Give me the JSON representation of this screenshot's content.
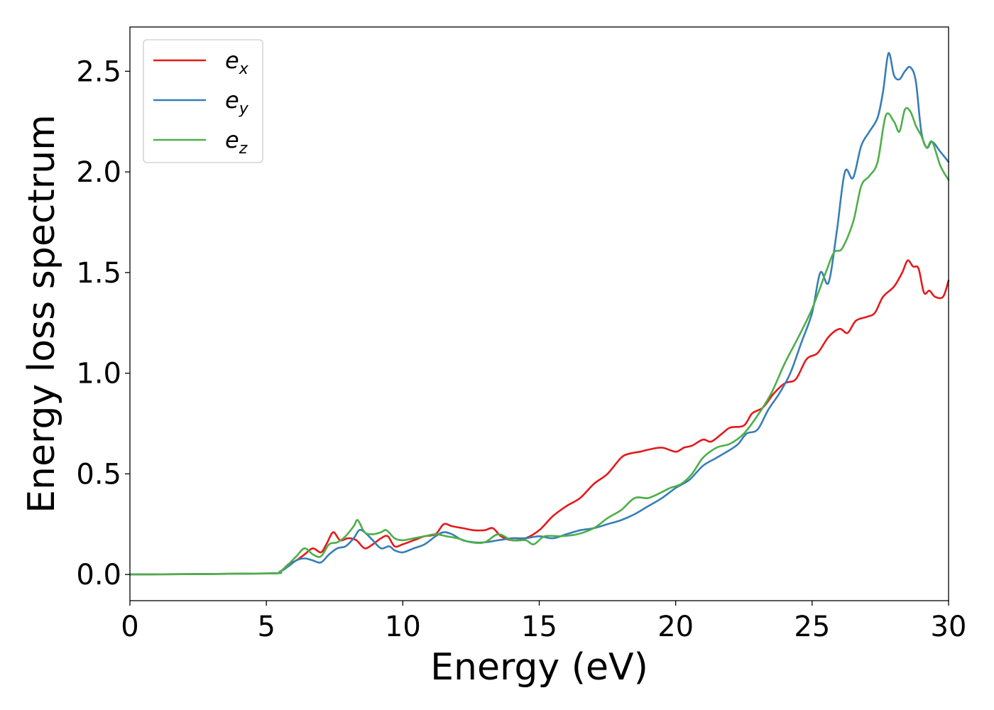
{
  "chart_data": {
    "type": "line",
    "xlabel": "Energy (eV)",
    "ylabel": "Energy loss spectrum",
    "xlim": [
      0,
      30
    ],
    "ylim": [
      -0.13,
      2.72
    ],
    "xticks": [
      0,
      5,
      10,
      15,
      20,
      25,
      30
    ],
    "xtick_labels": [
      "0",
      "5",
      "10",
      "15",
      "20",
      "25",
      "30"
    ],
    "yticks": [
      0.0,
      0.5,
      1.0,
      1.5,
      2.0,
      2.5
    ],
    "ytick_labels": [
      "0.0",
      "0.5",
      "1.0",
      "1.5",
      "2.0",
      "2.5"
    ],
    "grid": false,
    "legend_position": "upper-left",
    "series": [
      {
        "name": "e_x",
        "legend_base": "e",
        "legend_sub": "x",
        "color": "#e41a1c",
        "x": [
          0,
          5,
          5.5,
          5.8,
          6.1,
          6.4,
          6.7,
          7.0,
          7.2,
          7.45,
          7.7,
          8.0,
          8.3,
          8.6,
          8.9,
          9.2,
          9.45,
          9.7,
          10.0,
          10.4,
          10.8,
          11.2,
          11.5,
          11.8,
          12.2,
          12.6,
          13.0,
          13.3,
          13.6,
          14.0,
          14.5,
          15.0,
          15.5,
          16.0,
          16.5,
          17.0,
          17.5,
          18.0,
          18.3,
          18.7,
          19.0,
          19.5,
          20.0,
          20.3,
          20.6,
          21.0,
          21.3,
          21.7,
          22.0,
          22.5,
          22.8,
          23.2,
          23.6,
          24.0,
          24.4,
          24.8,
          25.2,
          25.6,
          26.0,
          26.3,
          26.6,
          27.0,
          27.3,
          27.6,
          28.0,
          28.3,
          28.5,
          28.7,
          28.9,
          29.1,
          29.3,
          29.5,
          29.8,
          30.0
        ],
        "values": [
          0.0,
          0.005,
          0.015,
          0.05,
          0.07,
          0.1,
          0.13,
          0.11,
          0.15,
          0.21,
          0.17,
          0.18,
          0.17,
          0.13,
          0.15,
          0.18,
          0.19,
          0.14,
          0.15,
          0.17,
          0.19,
          0.2,
          0.25,
          0.24,
          0.23,
          0.22,
          0.22,
          0.23,
          0.19,
          0.17,
          0.18,
          0.22,
          0.29,
          0.34,
          0.38,
          0.45,
          0.5,
          0.58,
          0.6,
          0.61,
          0.62,
          0.63,
          0.61,
          0.63,
          0.64,
          0.67,
          0.66,
          0.7,
          0.73,
          0.74,
          0.8,
          0.83,
          0.9,
          0.95,
          0.97,
          1.07,
          1.1,
          1.18,
          1.22,
          1.2,
          1.26,
          1.28,
          1.3,
          1.38,
          1.43,
          1.5,
          1.56,
          1.53,
          1.52,
          1.4,
          1.41,
          1.38,
          1.38,
          1.46
        ]
      },
      {
        "name": "e_y",
        "legend_base": "e",
        "legend_sub": "y",
        "color": "#377eb8",
        "x": [
          0,
          5,
          5.5,
          5.8,
          6.1,
          6.4,
          6.7,
          7.0,
          7.3,
          7.6,
          7.9,
          8.2,
          8.4,
          8.6,
          8.9,
          9.2,
          9.5,
          9.7,
          10.0,
          10.4,
          10.8,
          11.2,
          11.5,
          11.8,
          12.2,
          12.6,
          13.0,
          13.5,
          14.0,
          14.5,
          15.0,
          15.5,
          16.0,
          16.5,
          17.0,
          17.5,
          18.0,
          18.5,
          19.0,
          19.5,
          20.0,
          20.5,
          21.0,
          21.5,
          22.0,
          22.3,
          22.6,
          23.0,
          23.4,
          23.8,
          24.2,
          24.6,
          25.0,
          25.3,
          25.6,
          25.9,
          26.2,
          26.5,
          26.8,
          27.1,
          27.4,
          27.6,
          27.8,
          28.0,
          28.2,
          28.4,
          28.6,
          28.8,
          29.0,
          29.2,
          29.4,
          29.7,
          30.0
        ],
        "values": [
          0.0,
          0.005,
          0.015,
          0.04,
          0.07,
          0.08,
          0.07,
          0.06,
          0.1,
          0.13,
          0.14,
          0.18,
          0.22,
          0.21,
          0.17,
          0.13,
          0.14,
          0.12,
          0.11,
          0.13,
          0.15,
          0.19,
          0.21,
          0.2,
          0.17,
          0.16,
          0.16,
          0.17,
          0.18,
          0.18,
          0.19,
          0.18,
          0.2,
          0.22,
          0.23,
          0.25,
          0.27,
          0.3,
          0.34,
          0.38,
          0.43,
          0.47,
          0.54,
          0.58,
          0.62,
          0.65,
          0.7,
          0.72,
          0.82,
          0.9,
          1.0,
          1.15,
          1.3,
          1.5,
          1.45,
          1.7,
          2.0,
          1.97,
          2.13,
          2.2,
          2.27,
          2.4,
          2.59,
          2.48,
          2.46,
          2.5,
          2.52,
          2.45,
          2.2,
          2.12,
          2.15,
          2.1,
          2.05
        ]
      },
      {
        "name": "e_z",
        "legend_base": "e",
        "legend_sub": "z",
        "color": "#4daf4a",
        "x": [
          0,
          5,
          5.5,
          5.8,
          6.1,
          6.4,
          6.7,
          7.0,
          7.3,
          7.6,
          7.9,
          8.2,
          8.35,
          8.6,
          8.9,
          9.2,
          9.4,
          9.7,
          10.0,
          10.4,
          10.8,
          11.2,
          11.6,
          12.0,
          12.5,
          13.0,
          13.5,
          14.0,
          14.5,
          14.8,
          15.2,
          15.8,
          16.4,
          17.0,
          17.5,
          18.0,
          18.5,
          19.0,
          19.5,
          19.8,
          20.2,
          20.6,
          21.0,
          21.5,
          22.0,
          22.5,
          23.0,
          23.5,
          24.0,
          24.5,
          25.0,
          25.5,
          25.8,
          26.1,
          26.5,
          26.8,
          27.1,
          27.4,
          27.7,
          28.0,
          28.2,
          28.4,
          28.6,
          28.8,
          29.0,
          29.2,
          29.4,
          29.7,
          30.0
        ],
        "values": [
          0.0,
          0.005,
          0.015,
          0.05,
          0.09,
          0.13,
          0.1,
          0.09,
          0.15,
          0.16,
          0.19,
          0.24,
          0.27,
          0.21,
          0.2,
          0.21,
          0.22,
          0.18,
          0.17,
          0.18,
          0.19,
          0.2,
          0.19,
          0.18,
          0.16,
          0.16,
          0.2,
          0.17,
          0.17,
          0.15,
          0.19,
          0.19,
          0.2,
          0.23,
          0.28,
          0.32,
          0.38,
          0.38,
          0.41,
          0.43,
          0.45,
          0.5,
          0.58,
          0.63,
          0.65,
          0.7,
          0.79,
          0.9,
          1.05,
          1.18,
          1.32,
          1.5,
          1.6,
          1.62,
          1.75,
          1.93,
          1.98,
          2.05,
          2.28,
          2.25,
          2.2,
          2.31,
          2.3,
          2.23,
          2.18,
          2.12,
          2.15,
          2.03,
          1.96
        ]
      }
    ]
  }
}
